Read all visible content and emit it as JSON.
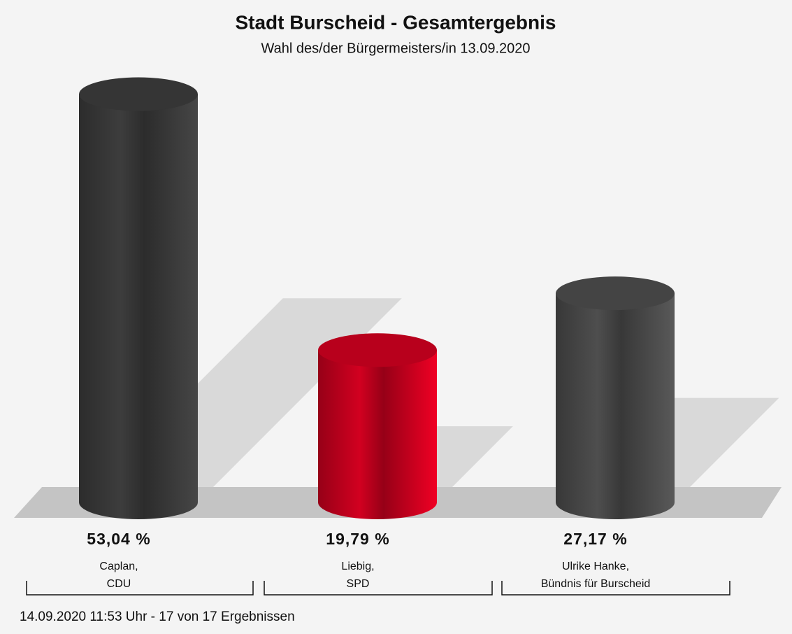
{
  "chart_data": {
    "type": "bar",
    "title": "Stadt Burscheid - Gesamtergebnis",
    "subtitle": "Wahl des/der Bürgermeisters/in 13.09.2020",
    "categories": [
      [
        "Caplan,",
        "CDU"
      ],
      [
        "Liebig,",
        "SPD"
      ],
      [
        "Ulrike Hanke,",
        "Bündnis für Burscheid"
      ]
    ],
    "values": [
      53.04,
      19.79,
      27.17
    ],
    "value_labels": [
      "53,04 %",
      "19,79 %",
      "27,17 %"
    ],
    "colors": [
      "#3a3a3a",
      "#c8001e",
      "#4a4a4a"
    ],
    "footnote": "14.09.2020 11:53 Uhr - 17 von 17 Ergebnissen"
  }
}
